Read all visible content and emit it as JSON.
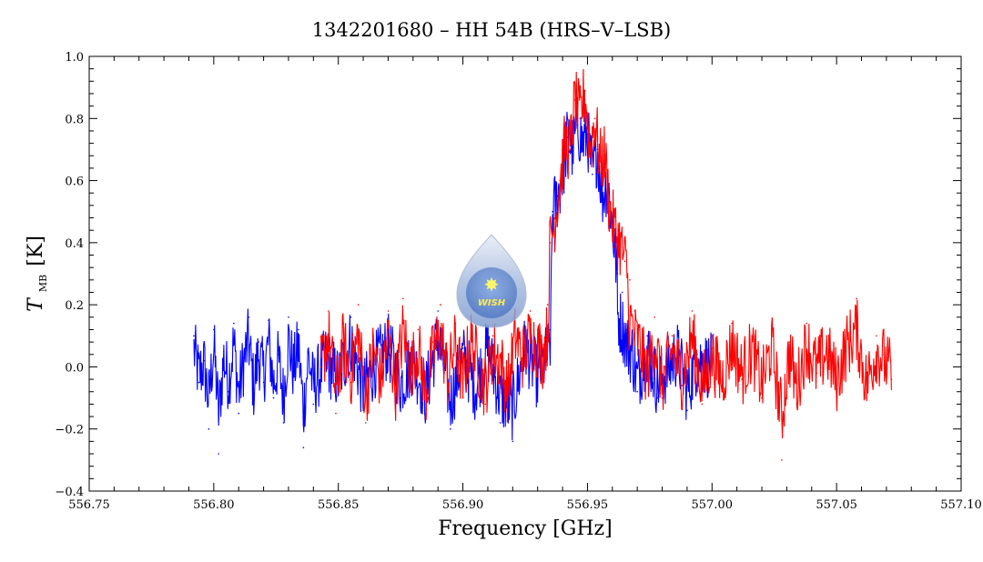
{
  "chart_data": {
    "type": "line",
    "title": "1342201680 – HH 54B (HRS–V–LSB)",
    "xlabel": "Frequency [GHz]",
    "ylabel_main": "T",
    "ylabel_sub": "MB",
    "ylabel_unit": "[K]",
    "xlim": [
      556.75,
      557.1
    ],
    "ylim": [
      -0.4,
      1.0
    ],
    "xticks": [
      "556.75",
      "556.80",
      "556.85",
      "556.90",
      "556.95",
      "557.00",
      "557.05",
      "557.10"
    ],
    "yticks": [
      "−0.4",
      "−0.2",
      "0.0",
      "0.2",
      "0.4",
      "0.6",
      "0.8",
      "1.0"
    ],
    "grid": false,
    "legend": "none",
    "logo_text": "WISH",
    "series": [
      {
        "color": "#0000ff",
        "x_start": 556.792,
        "x_end": 557.0,
        "points": [
          [
            556.792,
            0.1
          ],
          [
            556.794,
            -0.05
          ],
          [
            556.796,
            0.02
          ],
          [
            556.798,
            -0.2
          ],
          [
            556.8,
            0.12
          ],
          [
            556.802,
            -0.28
          ],
          [
            556.804,
            0.05
          ],
          [
            556.806,
            -0.08
          ],
          [
            556.808,
            0.14
          ],
          [
            556.81,
            -0.15
          ],
          [
            556.812,
            0.03
          ],
          [
            556.814,
            0.16
          ],
          [
            556.816,
            -0.12
          ],
          [
            556.818,
            0.08
          ],
          [
            556.82,
            -0.05
          ],
          [
            556.822,
            0.15
          ],
          [
            556.824,
            -0.1
          ],
          [
            556.826,
            0.04
          ],
          [
            556.828,
            -0.18
          ],
          [
            556.83,
            0.16
          ],
          [
            556.832,
            -0.02
          ],
          [
            556.834,
            0.12
          ],
          [
            556.836,
            -0.26
          ],
          [
            556.838,
            0.06
          ],
          [
            556.84,
            -0.12
          ],
          [
            556.845,
            0.05
          ],
          [
            556.85,
            -0.08
          ],
          [
            556.855,
            0.16
          ],
          [
            556.86,
            -0.14
          ],
          [
            556.865,
            0.02
          ],
          [
            556.87,
            0.12
          ],
          [
            556.875,
            -0.1
          ],
          [
            556.88,
            0.04
          ],
          [
            556.885,
            -0.16
          ],
          [
            556.89,
            0.18
          ],
          [
            556.895,
            -0.2
          ],
          [
            556.9,
            0.06
          ],
          [
            556.905,
            -0.12
          ],
          [
            556.91,
            0.1
          ],
          [
            556.915,
            -0.18
          ],
          [
            556.92,
            -0.24
          ],
          [
            556.925,
            0.12
          ],
          [
            556.93,
            -0.06
          ],
          [
            556.933,
            0.04
          ],
          [
            556.935,
            0.12
          ],
          [
            556.936,
            0.5
          ],
          [
            556.938,
            0.55
          ],
          [
            556.94,
            0.62
          ],
          [
            556.942,
            0.74
          ],
          [
            556.944,
            0.7
          ],
          [
            556.946,
            0.78
          ],
          [
            556.948,
            0.72
          ],
          [
            556.95,
            0.75
          ],
          [
            556.952,
            0.62
          ],
          [
            556.954,
            0.7
          ],
          [
            556.956,
            0.55
          ],
          [
            556.958,
            0.6
          ],
          [
            556.96,
            0.45
          ],
          [
            556.962,
            0.3
          ],
          [
            556.964,
            0.24
          ],
          [
            556.966,
            0.12
          ],
          [
            556.968,
            0.08
          ],
          [
            556.97,
            -0.08
          ],
          [
            556.974,
            0.1
          ],
          [
            556.978,
            -0.1
          ],
          [
            556.982,
            -0.02
          ],
          [
            556.986,
            0.08
          ],
          [
            556.99,
            -0.14
          ],
          [
            556.994,
            0.04
          ],
          [
            557.0,
            0.0
          ]
        ]
      },
      {
        "color": "#ff0000",
        "x_start": 556.843,
        "x_end": 557.072,
        "points": [
          [
            556.843,
            0.0
          ],
          [
            556.846,
            0.18
          ],
          [
            556.849,
            -0.15
          ],
          [
            556.852,
            0.14
          ],
          [
            556.855,
            -0.05
          ],
          [
            556.858,
            0.2
          ],
          [
            556.861,
            -0.18
          ],
          [
            556.864,
            0.1
          ],
          [
            556.867,
            -0.08
          ],
          [
            556.87,
            0.18
          ],
          [
            556.873,
            -0.12
          ],
          [
            556.876,
            0.22
          ],
          [
            556.879,
            -0.02
          ],
          [
            556.882,
            0.12
          ],
          [
            556.885,
            -0.16
          ],
          [
            556.888,
            0.08
          ],
          [
            556.891,
            0.2
          ],
          [
            556.894,
            -0.06
          ],
          [
            556.897,
            0.14
          ],
          [
            556.9,
            -0.1
          ],
          [
            556.903,
            0.16
          ],
          [
            556.906,
            0.02
          ],
          [
            556.909,
            -0.12
          ],
          [
            556.912,
            0.1
          ],
          [
            556.915,
            0.04
          ],
          [
            556.918,
            -0.14
          ],
          [
            556.921,
            0.18
          ],
          [
            556.924,
            0.06
          ],
          [
            556.927,
            0.18
          ],
          [
            556.93,
            0.12
          ],
          [
            556.932,
            0.06
          ],
          [
            556.934,
            0.2
          ],
          [
            556.935,
            0.4
          ],
          [
            556.937,
            0.48
          ],
          [
            556.939,
            0.6
          ],
          [
            556.941,
            0.72
          ],
          [
            556.943,
            0.7
          ],
          [
            556.945,
            0.86
          ],
          [
            556.947,
            0.8
          ],
          [
            556.949,
            0.89
          ],
          [
            556.951,
            0.7
          ],
          [
            556.953,
            0.8
          ],
          [
            556.955,
            0.66
          ],
          [
            556.957,
            0.68
          ],
          [
            556.959,
            0.5
          ],
          [
            556.961,
            0.44
          ],
          [
            556.963,
            0.4
          ],
          [
            556.965,
            0.34
          ],
          [
            556.967,
            0.28
          ],
          [
            556.969,
            0.18
          ],
          [
            556.971,
            0.12
          ],
          [
            556.974,
            -0.04
          ],
          [
            556.977,
            0.16
          ],
          [
            556.98,
            -0.1
          ],
          [
            556.984,
            0.1
          ],
          [
            556.988,
            -0.06
          ],
          [
            556.992,
            0.18
          ],
          [
            556.996,
            -0.12
          ],
          [
            557.0,
            0.06
          ],
          [
            557.004,
            -0.08
          ],
          [
            557.008,
            0.14
          ],
          [
            557.012,
            -0.04
          ],
          [
            557.016,
            0.1
          ],
          [
            557.02,
            -0.1
          ],
          [
            557.024,
            0.12
          ],
          [
            557.028,
            -0.3
          ],
          [
            557.031,
            0.08
          ],
          [
            557.034,
            -0.12
          ],
          [
            557.038,
            0.14
          ],
          [
            557.042,
            -0.02
          ],
          [
            557.046,
            0.1
          ],
          [
            557.05,
            -0.08
          ],
          [
            557.054,
            0.12
          ],
          [
            557.058,
            0.22
          ],
          [
            557.062,
            -0.1
          ],
          [
            557.066,
            0.1
          ],
          [
            557.069,
            0.04
          ],
          [
            557.072,
            -0.04
          ]
        ]
      }
    ]
  }
}
